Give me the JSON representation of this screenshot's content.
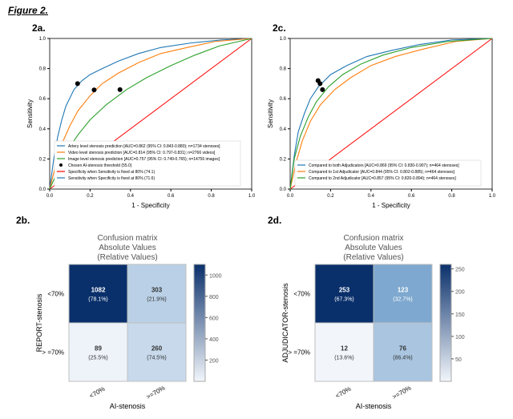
{
  "figure": {
    "title": "Figure 2."
  },
  "panels": {
    "a": {
      "label": "2a."
    },
    "b": {
      "label": "2b."
    },
    "c": {
      "label": "2c."
    },
    "d": {
      "label": "2d."
    }
  },
  "roc_common": {
    "xlabel": "1 - Specificity",
    "ylabel": "Sensitivity",
    "xlim": [
      0,
      1
    ],
    "ylim": [
      0,
      1
    ],
    "ticks": [
      0.0,
      0.2,
      0.4,
      0.6,
      0.8,
      1.0
    ],
    "tick_labels": [
      "0.0",
      "0.2",
      "0.4",
      "0.6",
      "0.8",
      "1.0"
    ],
    "diag_color": "#ff0000",
    "axis_color": "#000000",
    "grid": false,
    "label_fontsize": 8,
    "tick_fontsize": 6,
    "legend_fontsize": 5,
    "marker_color": "#000000",
    "marker_size": 3,
    "linewidth": 1.1
  },
  "roc_a": {
    "curves": [
      {
        "color": "#1f77b4",
        "label": "Artery level stenosis prediction [AUC=0.862 (95% CI: 0.843-0.880); n=1734 stenoses]",
        "pts": [
          [
            0,
            0
          ],
          [
            0.02,
            0.2
          ],
          [
            0.04,
            0.35
          ],
          [
            0.06,
            0.46
          ],
          [
            0.08,
            0.55
          ],
          [
            0.12,
            0.66
          ],
          [
            0.16,
            0.72
          ],
          [
            0.2,
            0.76
          ],
          [
            0.26,
            0.8
          ],
          [
            0.34,
            0.85
          ],
          [
            0.44,
            0.9
          ],
          [
            0.55,
            0.94
          ],
          [
            0.7,
            0.97
          ],
          [
            0.85,
            0.99
          ],
          [
            1,
            1
          ]
        ]
      },
      {
        "color": "#ff7f0e",
        "label": "Video level stenosis prediction [AUC=0.814 (95% CI: 0.797-0.831); n=2766 videos]",
        "pts": [
          [
            0,
            0
          ],
          [
            0.03,
            0.16
          ],
          [
            0.06,
            0.3
          ],
          [
            0.1,
            0.42
          ],
          [
            0.14,
            0.52
          ],
          [
            0.2,
            0.62
          ],
          [
            0.26,
            0.7
          ],
          [
            0.34,
            0.77
          ],
          [
            0.44,
            0.84
          ],
          [
            0.55,
            0.9
          ],
          [
            0.68,
            0.94
          ],
          [
            0.82,
            0.98
          ],
          [
            1,
            1
          ]
        ]
      },
      {
        "color": "#2ca02c",
        "label": "Image level stenosis prediction [AUC=0.757 (95% CI: 0.749-0.765); n=14756 images]",
        "pts": [
          [
            0,
            0
          ],
          [
            0.04,
            0.12
          ],
          [
            0.08,
            0.24
          ],
          [
            0.14,
            0.36
          ],
          [
            0.2,
            0.46
          ],
          [
            0.28,
            0.56
          ],
          [
            0.38,
            0.66
          ],
          [
            0.48,
            0.74
          ],
          [
            0.6,
            0.82
          ],
          [
            0.72,
            0.89
          ],
          [
            0.84,
            0.95
          ],
          [
            1,
            1
          ]
        ]
      }
    ],
    "markers": [
      [
        0.138,
        0.7
      ],
      [
        0.22,
        0.658
      ],
      [
        0.348,
        0.66
      ]
    ],
    "extra_legend": [
      {
        "label": "Chosen AI-stenosis threshold (55.0)",
        "color": "#000000",
        "marker": true
      },
      {
        "label": "Specificity when Sensitivity is fixed at 80% (74.1)",
        "color": "#ff0000",
        "marker": false
      },
      {
        "label": "Sensitivity when Specificity is fixed at 80% (71.6)",
        "color": "#1f77b4",
        "marker": false
      }
    ]
  },
  "roc_c": {
    "curves": [
      {
        "color": "#1f77b4",
        "label": "Compared to both Adjudicators [AUC=0.869 (95% CI: 0.830-0.907); n=464 stenoses]",
        "pts": [
          [
            0,
            0
          ],
          [
            0.02,
            0.22
          ],
          [
            0.04,
            0.38
          ],
          [
            0.07,
            0.5
          ],
          [
            0.1,
            0.6
          ],
          [
            0.14,
            0.68
          ],
          [
            0.2,
            0.76
          ],
          [
            0.28,
            0.82
          ],
          [
            0.38,
            0.88
          ],
          [
            0.5,
            0.92
          ],
          [
            0.64,
            0.96
          ],
          [
            0.8,
            0.99
          ],
          [
            1,
            1
          ]
        ]
      },
      {
        "color": "#ff7f0e",
        "label": "Compared to 1st Adjudicator [AUC=0.844 (95% CI: 0.802-0.885); n=464 stenoses]",
        "pts": [
          [
            0,
            0
          ],
          [
            0.03,
            0.18
          ],
          [
            0.06,
            0.32
          ],
          [
            0.1,
            0.45
          ],
          [
            0.15,
            0.56
          ],
          [
            0.22,
            0.66
          ],
          [
            0.3,
            0.74
          ],
          [
            0.4,
            0.82
          ],
          [
            0.52,
            0.88
          ],
          [
            0.66,
            0.93
          ],
          [
            0.82,
            0.98
          ],
          [
            1,
            1
          ]
        ]
      },
      {
        "color": "#2ca02c",
        "label": "Compared to 2nd Adjudicator [AUC=0.857 (95% CI: 0.820-0.894); n=464 stenoses]",
        "pts": [
          [
            0,
            0
          ],
          [
            0.02,
            0.2
          ],
          [
            0.05,
            0.35
          ],
          [
            0.09,
            0.48
          ],
          [
            0.13,
            0.58
          ],
          [
            0.19,
            0.68
          ],
          [
            0.26,
            0.76
          ],
          [
            0.35,
            0.83
          ],
          [
            0.46,
            0.89
          ],
          [
            0.6,
            0.94
          ],
          [
            0.78,
            0.98
          ],
          [
            1,
            1
          ]
        ]
      }
    ],
    "markers": [
      [
        0.138,
        0.72
      ],
      [
        0.16,
        0.66
      ],
      [
        0.148,
        0.7
      ]
    ],
    "extra_legend": []
  },
  "cm_common": {
    "title_line1": "Confusion matrix",
    "title_line2": "Absolute Values",
    "title_line3": "(Relative Values)",
    "xlabel": "AI-stenosis",
    "xcats": [
      "<70%",
      ">=70%"
    ],
    "title_fontsize": 10,
    "axis_fontsize": 9,
    "tick_fontsize": 8,
    "cell_fontsize": 7,
    "border_color": "#bfbfbf",
    "text_light": "#ffffff",
    "text_dark": "#333333",
    "cmap_low": "#f2f6fb",
    "cmap_high": "#0a306b"
  },
  "cm_b": {
    "ylabel": "REPORT-stenosis",
    "ycats": [
      "<70%",
      "> =70%"
    ],
    "cells": [
      {
        "v": 1082,
        "p": "(78.1%)",
        "c": "#0a306b",
        "t": "light"
      },
      {
        "v": 303,
        "p": "(21.9%)",
        "c": "#b9d0e6",
        "t": "dark"
      },
      {
        "v": 89,
        "p": "(25.5%)",
        "c": "#eef3fa",
        "t": "dark"
      },
      {
        "v": 260,
        "p": "(74.5%)",
        "c": "#c7d9eb",
        "t": "dark"
      }
    ],
    "cbar_ticks": [
      200,
      400,
      600,
      800,
      1000
    ],
    "cbar_max": 1100
  },
  "cm_d": {
    "ylabel": "ADJUDICATOR-stenosis",
    "ycats": [
      "<70%",
      "> =70%"
    ],
    "cells": [
      {
        "v": 253,
        "p": "(67.3%)",
        "c": "#0a306b",
        "t": "light"
      },
      {
        "v": 123,
        "p": "(32.7%)",
        "c": "#7ea8cf",
        "t": "light"
      },
      {
        "v": 12,
        "p": "(13.6%)",
        "c": "#f2f6fb",
        "t": "dark"
      },
      {
        "v": 76,
        "p": "(86.4%)",
        "c": "#a9c5e0",
        "t": "dark"
      }
    ],
    "cbar_ticks": [
      50,
      100,
      150,
      200,
      250
    ],
    "cbar_max": 260
  }
}
